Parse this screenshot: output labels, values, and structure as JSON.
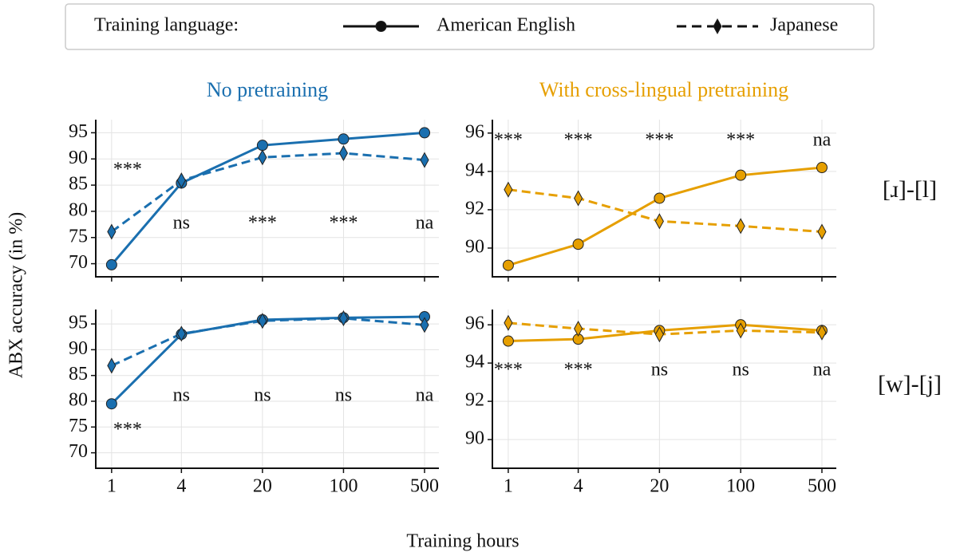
{
  "figure": {
    "legend_title": "Training language:",
    "column_titles": [
      "No pretraining",
      "With cross-lingual pretraining"
    ],
    "column_colors": [
      "#1a6faf",
      "#e69f00"
    ],
    "row_labels": [
      "[ɹ]-[l]",
      "[w]-[j]"
    ],
    "ylabel": "ABX accuracy (in %)",
    "xlabel": "Training hours"
  },
  "chart_data": [
    {
      "type": "line",
      "x": [
        1,
        4,
        20,
        100,
        500
      ],
      "xscale": "log",
      "xlim": [
        0.73,
        665
      ],
      "xticks": [
        1,
        4,
        20,
        100,
        500
      ],
      "ylim": [
        67.5,
        97.5
      ],
      "yticks": [
        70,
        75,
        80,
        85,
        90,
        95
      ],
      "grid": true,
      "annotations": [
        "***",
        "ns",
        "***",
        "***",
        "na"
      ],
      "series": [
        {
          "name": "American English",
          "color": "#1a6faf",
          "dashed": false,
          "marker": "circle",
          "values": [
            69.8,
            85.4,
            92.6,
            93.8,
            95.0
          ]
        },
        {
          "name": "Japanese",
          "color": "#1a6faf",
          "dashed": true,
          "marker": "diamond",
          "values": [
            76.1,
            85.9,
            90.3,
            91.1,
            89.8
          ]
        }
      ]
    },
    {
      "type": "line",
      "x": [
        1,
        4,
        20,
        100,
        500
      ],
      "xscale": "log",
      "xlim": [
        0.73,
        665
      ],
      "xticks": [
        1,
        4,
        20,
        100,
        500
      ],
      "ylim": [
        88.5,
        96.7
      ],
      "yticks": [
        90,
        92,
        94,
        96
      ],
      "grid": true,
      "annotations": [
        "***",
        "***",
        "***",
        "***",
        "na"
      ],
      "series": [
        {
          "name": "American English",
          "color": "#e69f00",
          "dashed": false,
          "marker": "circle",
          "values": [
            89.1,
            90.2,
            92.6,
            93.8,
            94.2
          ]
        },
        {
          "name": "Japanese",
          "color": "#e69f00",
          "dashed": true,
          "marker": "diamond",
          "values": [
            93.05,
            92.6,
            91.4,
            91.15,
            90.85
          ]
        }
      ]
    },
    {
      "type": "line",
      "x": [
        1,
        4,
        20,
        100,
        500
      ],
      "xscale": "log",
      "xlim": [
        0.73,
        665
      ],
      "xticks": [
        1,
        4,
        20,
        100,
        500
      ],
      "ylim": [
        67,
        97.8
      ],
      "yticks": [
        70,
        75,
        80,
        85,
        90,
        95
      ],
      "grid": true,
      "annotations": [
        "***",
        "ns",
        "ns",
        "ns",
        "na"
      ],
      "series": [
        {
          "name": "American English",
          "color": "#1a6faf",
          "dashed": false,
          "marker": "circle",
          "values": [
            79.5,
            93.0,
            95.8,
            96.2,
            96.4
          ]
        },
        {
          "name": "Japanese",
          "color": "#1a6faf",
          "dashed": true,
          "marker": "diamond",
          "values": [
            86.9,
            93.1,
            95.6,
            96.1,
            94.8
          ]
        }
      ]
    },
    {
      "type": "line",
      "x": [
        1,
        4,
        20,
        100,
        500
      ],
      "xscale": "log",
      "xlim": [
        0.73,
        665
      ],
      "xticks": [
        1,
        4,
        20,
        100,
        500
      ],
      "ylim": [
        88.5,
        96.8
      ],
      "yticks": [
        90,
        92,
        94,
        96
      ],
      "grid": true,
      "annotations": [
        "***",
        "***",
        "ns",
        "ns",
        "na"
      ],
      "series": [
        {
          "name": "American English",
          "color": "#e69f00",
          "dashed": false,
          "marker": "circle",
          "values": [
            95.15,
            95.25,
            95.7,
            96.0,
            95.7
          ]
        },
        {
          "name": "Japanese",
          "color": "#e69f00",
          "dashed": true,
          "marker": "diamond",
          "values": [
            96.1,
            95.8,
            95.5,
            95.7,
            95.6
          ]
        }
      ]
    }
  ]
}
